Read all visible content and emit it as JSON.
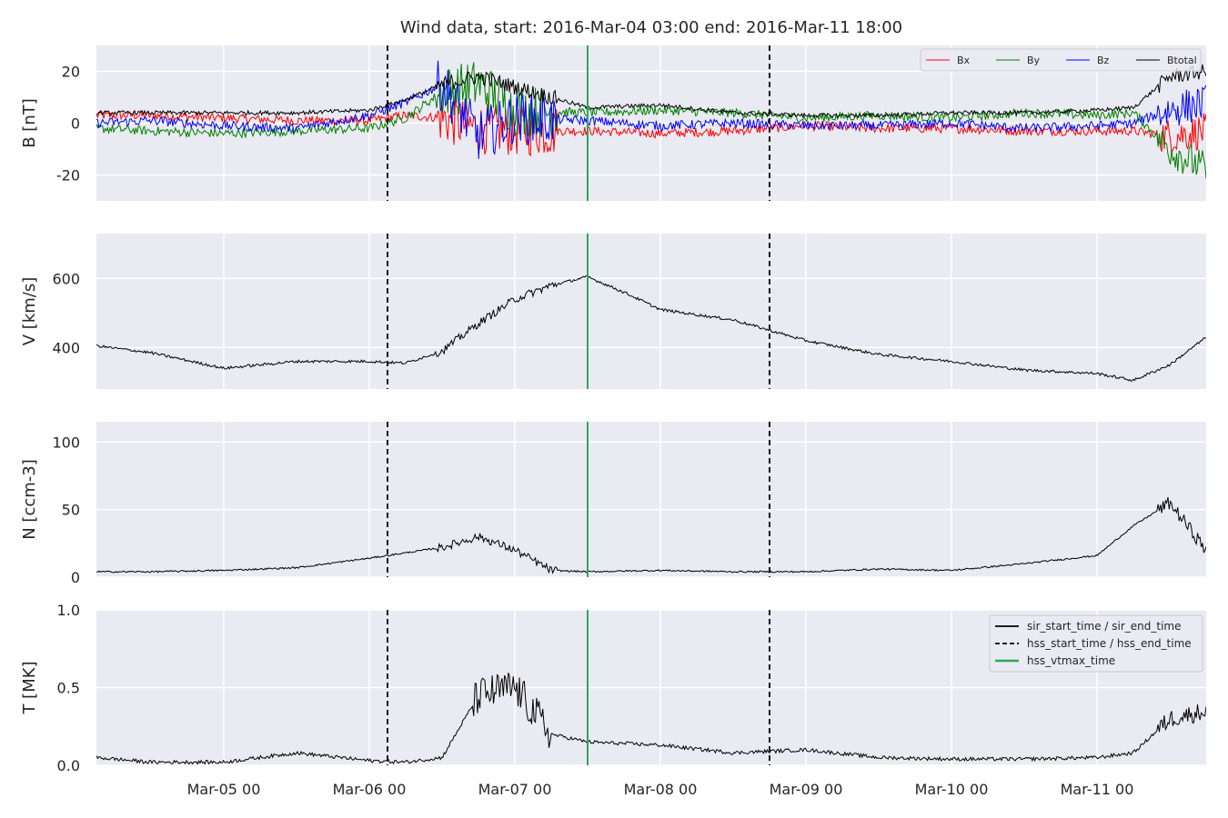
{
  "chart_data": {
    "type": "line",
    "title": "Wind data, start: 2016-Mar-04 03:00  end: 2016-Mar-11 18:00",
    "x_range": [
      "2016-03-04 03:00",
      "2016-03-11 18:00"
    ],
    "xticks": [
      "Mar-05 00",
      "Mar-06 00",
      "Mar-07 00",
      "Mar-08 00",
      "Mar-09 00",
      "Mar-10 00",
      "Mar-11 00"
    ],
    "grid": true,
    "vlines": [
      {
        "name": "hss_start_time",
        "x": "2016-03-06 03:00",
        "style": "dashed",
        "color": "#000000"
      },
      {
        "name": "hss_vtmax_time",
        "x": "2016-03-07 12:00",
        "style": "solid",
        "color": "#2ca85a"
      },
      {
        "name": "hss_end_time",
        "x": "2016-03-08 18:00",
        "style": "dashed",
        "color": "#000000"
      }
    ],
    "panels": [
      {
        "ylabel": "B [nT]",
        "ylim": [
          -30,
          30
        ],
        "yticks": [
          -20,
          0,
          20
        ],
        "legend_position": "top-right",
        "series": [
          {
            "name": "Bx",
            "color": "#ff0000",
            "x": [
              "2016-03-04 03:00",
              "2016-03-04 12:00",
              "2016-03-05 00:00",
              "2016-03-05 12:00",
              "2016-03-06 00:00",
              "2016-03-06 06:00",
              "2016-03-06 12:00",
              "2016-03-06 18:00",
              "2016-03-07 00:00",
              "2016-03-07 12:00",
              "2016-03-08 00:00",
              "2016-03-08 12:00",
              "2016-03-09 00:00",
              "2016-03-09 12:00",
              "2016-03-10 00:00",
              "2016-03-10 12:00",
              "2016-03-11 00:00",
              "2016-03-11 06:00",
              "2016-03-11 12:00",
              "2016-03-11 18:00"
            ],
            "values": [
              3,
              3,
              2,
              1,
              1,
              3,
              2,
              -2,
              -3,
              -3,
              -4,
              -3,
              -1,
              -2,
              -2,
              -3,
              -3,
              -3,
              -5,
              -3
            ]
          },
          {
            "name": "By",
            "color": "#008000",
            "x": [
              "2016-03-04 03:00",
              "2016-03-04 12:00",
              "2016-03-05 00:00",
              "2016-03-05 12:00",
              "2016-03-06 00:00",
              "2016-03-06 06:00",
              "2016-03-06 12:00",
              "2016-03-06 18:00",
              "2016-03-07 00:00",
              "2016-03-07 12:00",
              "2016-03-08 00:00",
              "2016-03-08 12:00",
              "2016-03-09 00:00",
              "2016-03-09 12:00",
              "2016-03-10 00:00",
              "2016-03-10 12:00",
              "2016-03-11 00:00",
              "2016-03-11 06:00",
              "2016-03-11 12:00",
              "2016-03-11 18:00"
            ],
            "values": [
              -2,
              -3,
              -4,
              -3,
              -2,
              2,
              12,
              15,
              5,
              4,
              5,
              4,
              2,
              3,
              2,
              4,
              3,
              4,
              -10,
              -18
            ]
          },
          {
            "name": "Bz",
            "color": "#0000ff",
            "x": [
              "2016-03-04 03:00",
              "2016-03-04 12:00",
              "2016-03-05 00:00",
              "2016-03-05 12:00",
              "2016-03-06 00:00",
              "2016-03-06 06:00",
              "2016-03-06 12:00",
              "2016-03-06 18:00",
              "2016-03-07 00:00",
              "2016-03-07 12:00",
              "2016-03-08 00:00",
              "2016-03-08 12:00",
              "2016-03-09 00:00",
              "2016-03-09 12:00",
              "2016-03-10 00:00",
              "2016-03-10 12:00",
              "2016-03-11 00:00",
              "2016-03-11 06:00",
              "2016-03-11 12:00",
              "2016-03-11 18:00"
            ],
            "values": [
              0,
              1,
              -1,
              -2,
              3,
              8,
              15,
              -5,
              2,
              1,
              -1,
              0,
              -1,
              -1,
              0,
              -2,
              -1,
              0,
              5,
              8
            ]
          },
          {
            "name": "Btotal",
            "color": "#000000",
            "x": [
              "2016-03-04 03:00",
              "2016-03-04 12:00",
              "2016-03-05 00:00",
              "2016-03-05 12:00",
              "2016-03-06 00:00",
              "2016-03-06 06:00",
              "2016-03-06 12:00",
              "2016-03-06 18:00",
              "2016-03-07 00:00",
              "2016-03-07 12:00",
              "2016-03-08 00:00",
              "2016-03-08 12:00",
              "2016-03-09 00:00",
              "2016-03-09 12:00",
              "2016-03-10 00:00",
              "2016-03-10 12:00",
              "2016-03-11 00:00",
              "2016-03-11 06:00",
              "2016-03-11 12:00",
              "2016-03-11 18:00"
            ],
            "values": [
              4,
              4,
              4,
              4,
              5,
              9,
              15,
              18,
              14,
              6,
              7,
              4,
              3,
              3,
              4,
              4,
              5,
              6,
              18,
              20
            ]
          }
        ]
      },
      {
        "ylabel": "V [km/s]",
        "ylim": [
          280,
          730
        ],
        "yticks": [
          400,
          600
        ],
        "series": [
          {
            "name": "",
            "color": "#000000",
            "x": [
              "2016-03-04 03:00",
              "2016-03-04 12:00",
              "2016-03-05 00:00",
              "2016-03-05 12:00",
              "2016-03-06 00:00",
              "2016-03-06 06:00",
              "2016-03-06 12:00",
              "2016-03-06 18:00",
              "2016-03-07 00:00",
              "2016-03-07 06:00",
              "2016-03-07 12:00",
              "2016-03-07 18:00",
              "2016-03-08 00:00",
              "2016-03-08 12:00",
              "2016-03-09 00:00",
              "2016-03-09 12:00",
              "2016-03-10 00:00",
              "2016-03-10 12:00",
              "2016-03-11 00:00",
              "2016-03-11 06:00",
              "2016-03-11 12:00",
              "2016-03-11 18:00"
            ],
            "values": [
              405,
              385,
              340,
              360,
              360,
              355,
              390,
              470,
              540,
              580,
              605,
              560,
              510,
              480,
              420,
              380,
              360,
              335,
              325,
              305,
              350,
              430
            ]
          }
        ]
      },
      {
        "ylabel": "N [ccm-3]",
        "ylim": [
          0,
          115
        ],
        "yticks": [
          0,
          50,
          100
        ],
        "series": [
          {
            "name": "",
            "color": "#000000",
            "x": [
              "2016-03-04 03:00",
              "2016-03-04 12:00",
              "2016-03-05 00:00",
              "2016-03-05 12:00",
              "2016-03-06 00:00",
              "2016-03-06 06:00",
              "2016-03-06 12:00",
              "2016-03-06 18:00",
              "2016-03-07 00:00",
              "2016-03-07 06:00",
              "2016-03-07 12:00",
              "2016-03-08 00:00",
              "2016-03-08 12:00",
              "2016-03-09 00:00",
              "2016-03-09 12:00",
              "2016-03-10 00:00",
              "2016-03-10 12:00",
              "2016-03-11 00:00",
              "2016-03-11 06:00",
              "2016-03-11 12:00",
              "2016-03-11 18:00"
            ],
            "values": [
              4,
              4,
              5,
              7,
              14,
              18,
              22,
              30,
              20,
              5,
              4,
              5,
              4,
              4,
              6,
              5,
              10,
              16,
              38,
              55,
              20
            ]
          }
        ]
      },
      {
        "ylabel": "T [MK]",
        "ylim": [
          0,
          1.0
        ],
        "yticks": [
          0.0,
          0.5,
          1.0
        ],
        "legend_position": "top-right",
        "series": [
          {
            "name": "",
            "color": "#000000",
            "x": [
              "2016-03-04 03:00",
              "2016-03-04 12:00",
              "2016-03-05 00:00",
              "2016-03-05 12:00",
              "2016-03-06 00:00",
              "2016-03-06 06:00",
              "2016-03-06 12:00",
              "2016-03-06 18:00",
              "2016-03-07 00:00",
              "2016-03-07 06:00",
              "2016-03-07 12:00",
              "2016-03-08 00:00",
              "2016-03-08 12:00",
              "2016-03-09 00:00",
              "2016-03-09 12:00",
              "2016-03-10 00:00",
              "2016-03-10 12:00",
              "2016-03-11 00:00",
              "2016-03-11 06:00",
              "2016-03-11 12:00",
              "2016-03-11 18:00"
            ],
            "values": [
              0.05,
              0.02,
              0.02,
              0.08,
              0.03,
              0.02,
              0.05,
              0.45,
              0.5,
              0.2,
              0.15,
              0.13,
              0.08,
              0.1,
              0.05,
              0.04,
              0.04,
              0.05,
              0.08,
              0.3,
              0.35
            ]
          }
        ],
        "legend_entries": [
          {
            "label": "sir_start_time / sir_end_time",
            "style": "solid",
            "color": "#000000"
          },
          {
            "label": "hss_start_time / hss_end_time",
            "style": "dashed",
            "color": "#000000"
          },
          {
            "label": "hss_vtmax_time",
            "style": "solid",
            "color": "#2ca85a"
          }
        ]
      }
    ]
  }
}
